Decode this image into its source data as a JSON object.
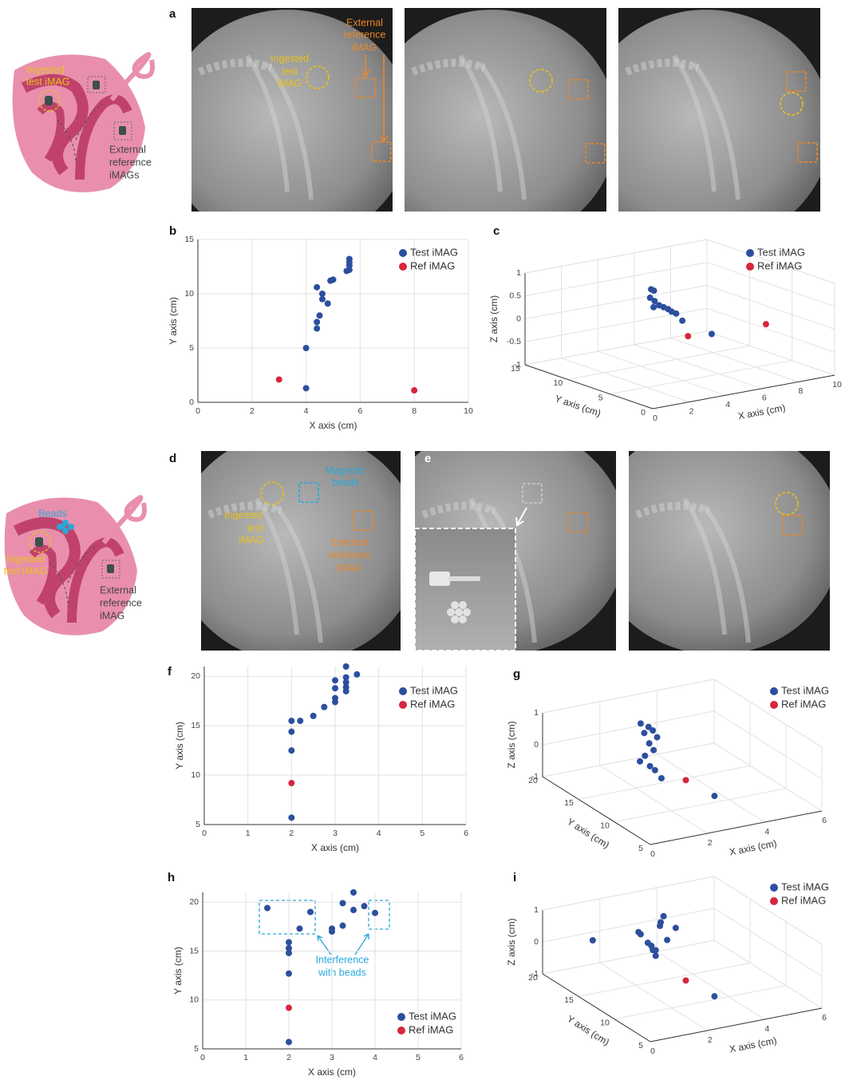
{
  "panel_labels": [
    "a",
    "b",
    "c",
    "d",
    "e",
    "f",
    "g",
    "h",
    "i"
  ],
  "illustration_top": {
    "test_label": [
      "Ingested",
      "test iMAG"
    ],
    "ref_label": [
      "External",
      "reference",
      "iMAGs"
    ]
  },
  "panel_a": {
    "test_label": [
      "Ingested",
      "test",
      "iMAG"
    ],
    "ref_label": [
      "External",
      "reference",
      "iMAG"
    ]
  },
  "illustration_bottom": {
    "beads_label": "Beads",
    "test_label": [
      "Ingested",
      "test iMAG"
    ],
    "ref_label": [
      "External",
      "reference",
      "iMAG"
    ]
  },
  "panel_d": {
    "beads_label": [
      "Magnetic",
      "beads"
    ],
    "test_label": [
      "Ingested",
      "test",
      "iMAG"
    ],
    "ref_label": [
      "External",
      "reference",
      "iMAG"
    ]
  },
  "panel_h_annotation": [
    "Interference",
    "with beads"
  ],
  "chart_data": [
    {
      "type": "scatter",
      "x_label": "X axis (cm)",
      "y_label": "Y axis (cm)",
      "xlim": [
        0,
        10
      ],
      "ylim": [
        0,
        15
      ],
      "xticks": [
        0,
        2,
        4,
        6,
        8,
        10
      ],
      "yticks": [
        0,
        5,
        10,
        15
      ],
      "grid": true,
      "series": [
        {
          "name": "Test iMAG",
          "color": "#2c4f9e",
          "x": [
            4.0,
            4.0,
            4.4,
            4.4,
            4.5,
            4.4,
            4.6,
            4.6,
            4.8,
            4.9,
            5.0,
            5.5,
            5.6,
            5.6,
            5.6,
            5.6
          ],
          "y": [
            5.0,
            1.3,
            6.8,
            7.4,
            8.0,
            10.6,
            10.0,
            9.5,
            9.1,
            11.2,
            11.3,
            12.1,
            12.2,
            12.6,
            12.9,
            13.2
          ]
        },
        {
          "name": "Ref iMAG",
          "color": "#d7263d",
          "x": [
            3.0,
            8.0
          ],
          "y": [
            2.1,
            1.1
          ]
        }
      ]
    },
    {
      "type": "scatter3d",
      "x_label": "X axis (cm)",
      "y_label": "Y axis (cm)",
      "z_label": "Z axis (cm)",
      "xlim": [
        0,
        10
      ],
      "ylim": [
        0,
        15
      ],
      "zlim": [
        -1,
        1
      ],
      "xticks": [
        0,
        2,
        4,
        6,
        8,
        10
      ],
      "yticks": [
        0,
        5,
        10,
        15
      ],
      "zticks": [
        -1,
        -0.5,
        0,
        0.5,
        1
      ],
      "grid": true,
      "series": [
        {
          "name": "Test iMAG",
          "color": "#2c4f9e",
          "x": [
            5.2,
            5.4,
            5.0,
            5.3,
            5.1,
            5.5,
            5.7,
            5.9,
            6.0,
            6.2,
            6.4,
            7.5
          ],
          "y": [
            11.3,
            11.4,
            11.0,
            11.1,
            10.8,
            11.0,
            10.9,
            10.8,
            10.6,
            10.5,
            10.2,
            9.1
          ],
          "z": [
            0.5,
            0.45,
            0.35,
            0.25,
            0.15,
            0.15,
            0.1,
            0.05,
            0.0,
            -0.05,
            -0.2,
            -0.5
          ]
        },
        {
          "name": "Ref iMAG",
          "color": "#d7263d",
          "x": [
            6.9,
            9.5
          ],
          "y": [
            10.6,
            7.0
          ],
          "z": [
            -0.6,
            -0.3
          ]
        }
      ]
    },
    {
      "type": "scatter",
      "x_label": "X axis (cm)",
      "y_label": "Y axis (cm)",
      "xlim": [
        0,
        6
      ],
      "ylim": [
        5,
        21
      ],
      "xticks": [
        0,
        1,
        2,
        3,
        4,
        5,
        6
      ],
      "yticks": [
        5,
        10,
        15,
        20
      ],
      "grid": true,
      "series": [
        {
          "name": "Test iMAG",
          "color": "#2c4f9e",
          "x": [
            2.0,
            2.0,
            2.0,
            2.0,
            2.2,
            2.5,
            2.75,
            3.0,
            3.0,
            3.0,
            3.25,
            3.25,
            3.25,
            3.25,
            3.0,
            3.25,
            3.5
          ],
          "y": [
            5.7,
            12.5,
            14.4,
            15.5,
            15.5,
            16.0,
            16.9,
            17.4,
            17.8,
            18.8,
            18.5,
            18.9,
            19.4,
            19.9,
            19.6,
            21.0,
            20.2
          ]
        },
        {
          "name": "Ref iMAG",
          "color": "#d7263d",
          "x": [
            2.0
          ],
          "y": [
            9.2
          ]
        }
      ]
    },
    {
      "type": "scatter3d",
      "x_label": "X axis (cm)",
      "y_label": "Y axis (cm)",
      "z_label": "Z axis (cm)",
      "xlim": [
        0,
        6
      ],
      "ylim": [
        5,
        20
      ],
      "zlim": [
        -1,
        1
      ],
      "xticks": [
        0,
        2,
        4,
        6
      ],
      "yticks": [
        5,
        10,
        15,
        20
      ],
      "zticks": [
        -1,
        0,
        1
      ],
      "grid": true,
      "series": [
        {
          "name": "Test iMAG",
          "color": "#2c4f9e",
          "x": [
            2.3,
            2.5,
            2.6,
            2.4,
            2.7,
            2.5,
            2.6,
            2.4,
            2.3,
            2.5,
            2.6,
            2.7,
            3.5
          ],
          "y": [
            15.5,
            15.2,
            15.0,
            15.4,
            14.8,
            15.1,
            14.9,
            15.3,
            15.6,
            15.0,
            14.7,
            14.2,
            10.0
          ],
          "z": [
            0.9,
            0.8,
            0.7,
            0.6,
            0.5,
            0.3,
            0.1,
            -0.1,
            -0.3,
            -0.4,
            -0.5,
            -0.7,
            -0.8
          ]
        },
        {
          "name": "Ref iMAG",
          "color": "#d7263d",
          "x": [
            3.0
          ],
          "y": [
            12.0
          ],
          "z": [
            -0.5
          ]
        }
      ]
    },
    {
      "type": "scatter",
      "x_label": "X axis (cm)",
      "y_label": "Y axis (cm)",
      "xlim": [
        0,
        6
      ],
      "ylim": [
        5,
        21
      ],
      "xticks": [
        0,
        1,
        2,
        3,
        4,
        5,
        6
      ],
      "yticks": [
        5,
        10,
        15,
        20
      ],
      "grid": true,
      "series": [
        {
          "name": "Test iMAG",
          "color": "#2c4f9e",
          "x": [
            2.0,
            2.0,
            2.0,
            2.0,
            2.0,
            1.5,
            2.25,
            2.5,
            3.0,
            3.0,
            3.25,
            3.25,
            3.5,
            3.5,
            3.75,
            4.0
          ],
          "y": [
            5.7,
            12.7,
            14.8,
            15.3,
            15.9,
            19.4,
            17.3,
            19.0,
            17.0,
            17.3,
            17.6,
            19.9,
            19.2,
            21.0,
            19.6,
            18.9
          ]
        },
        {
          "name": "Ref iMAG",
          "color": "#d7263d",
          "x": [
            2.0
          ],
          "y": [
            9.2
          ]
        }
      ]
    },
    {
      "type": "scatter3d",
      "x_label": "X axis (cm)",
      "y_label": "Y axis (cm)",
      "z_label": "Z axis (cm)",
      "xlim": [
        0,
        6
      ],
      "ylim": [
        5,
        20
      ],
      "zlim": [
        -1,
        1
      ],
      "xticks": [
        0,
        2,
        4,
        6
      ],
      "yticks": [
        5,
        10,
        15,
        20
      ],
      "zticks": [
        -1,
        0,
        1
      ],
      "grid": true,
      "series": [
        {
          "name": "Test iMAG",
          "color": "#2c4f9e",
          "x": [
            1.0,
            2.3,
            2.5,
            2.6,
            2.8,
            3.0,
            2.9,
            3.1,
            2.4,
            2.6,
            2.7,
            3.0,
            3.2,
            3.5
          ],
          "y": [
            17.0,
            15.8,
            15.3,
            15.0,
            15.4,
            15.6,
            15.1,
            15.5,
            15.9,
            15.2,
            15.0,
            14.6,
            14.2,
            10.0
          ],
          "z": [
            0.3,
            0.5,
            0.2,
            0.0,
            -0.1,
            0.6,
            0.8,
            0.9,
            0.4,
            0.1,
            -0.2,
            0.3,
            0.7,
            -0.9
          ]
        },
        {
          "name": "Ref iMAG",
          "color": "#d7263d",
          "x": [
            3.0
          ],
          "y": [
            12.0
          ],
          "z": [
            -0.6
          ]
        }
      ]
    }
  ]
}
